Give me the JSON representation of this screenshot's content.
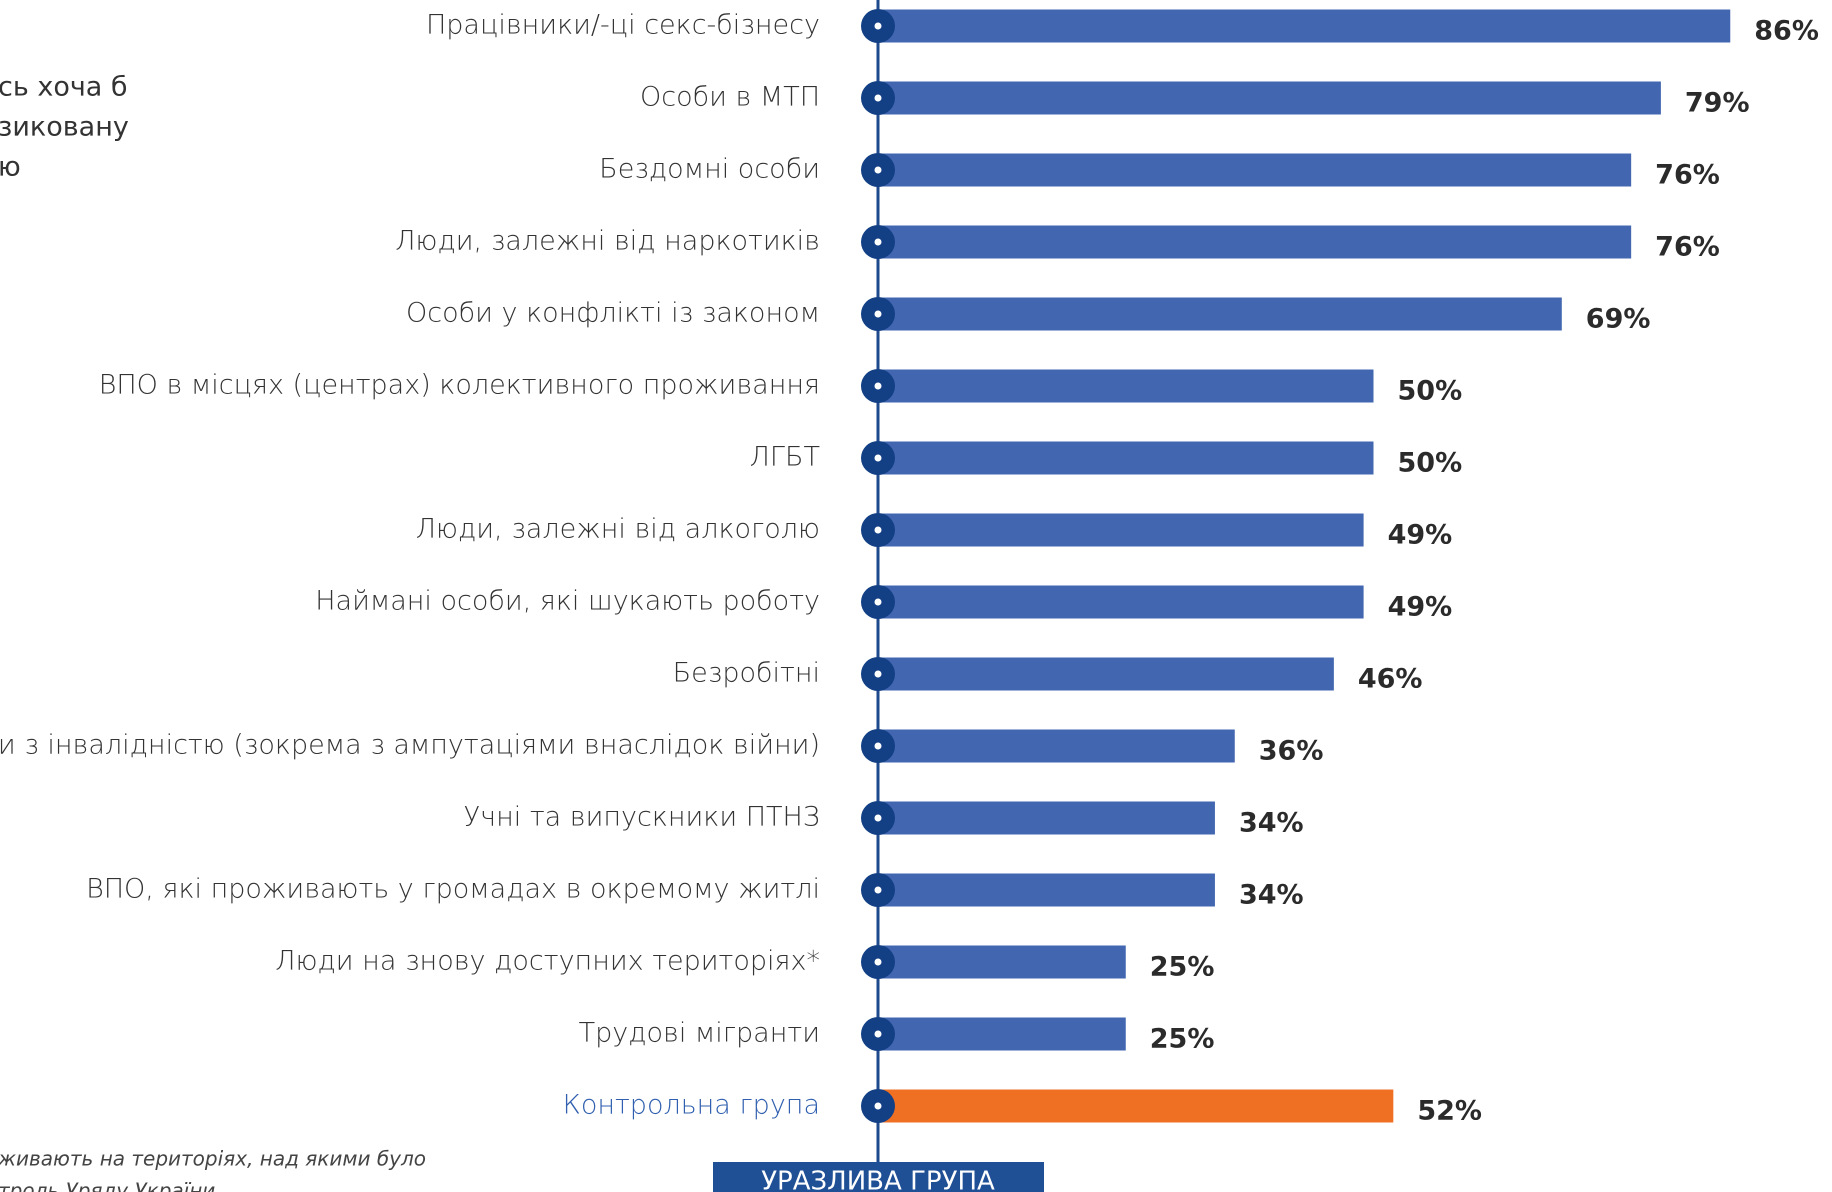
{
  "chart_data": {
    "type": "bar",
    "orientation": "horizontal",
    "categories": [
      "Працівники/-ці секс-бізнесу",
      "Особи в МТП",
      "Бездомні особи",
      "Люди, залежні від наркотиків",
      "Особи у конфлікті із законом",
      "ВПО в місцях (центрах) колективного проживання",
      "ЛГБТ",
      "Люди, залежні від алкоголю",
      "Наймані особи, які шукають роботу",
      "Безробітні",
      "Особи з інвалідністю (зокрема з ампутаціями внаслідок війни)",
      "Учні та випускники ПТНЗ",
      "ВПО, які проживають у громадах в окремому житлі",
      "Люди на знову доступних територіях*",
      "Трудові мігранти",
      "Контрольна група"
    ],
    "values": [
      86,
      79,
      76,
      76,
      69,
      50,
      50,
      49,
      49,
      46,
      36,
      34,
      34,
      25,
      25,
      52
    ],
    "value_labels": [
      "86%",
      "79%",
      "76%",
      "76%",
      "69%",
      "50%",
      "50%",
      "49%",
      "49%",
      "46%",
      "36%",
      "34%",
      "34%",
      "25%",
      "25%",
      "52%"
    ],
    "colors": [
      "#4266b0",
      "#4266b0",
      "#4266b0",
      "#4266b0",
      "#4266b0",
      "#4266b0",
      "#4266b0",
      "#4266b0",
      "#4266b0",
      "#4266b0",
      "#4266b0",
      "#4266b0",
      "#4266b0",
      "#4266b0",
      "#4266b0",
      "#f07023"
    ],
    "axis_label": "УРАЗЛИВА ГРУПА",
    "side_note": [
      "сь хоча б",
      "зиковану",
      "ю"
    ],
    "footnote": [
      "живають на територіях, над якими було",
      "троль Уряду України"
    ]
  }
}
